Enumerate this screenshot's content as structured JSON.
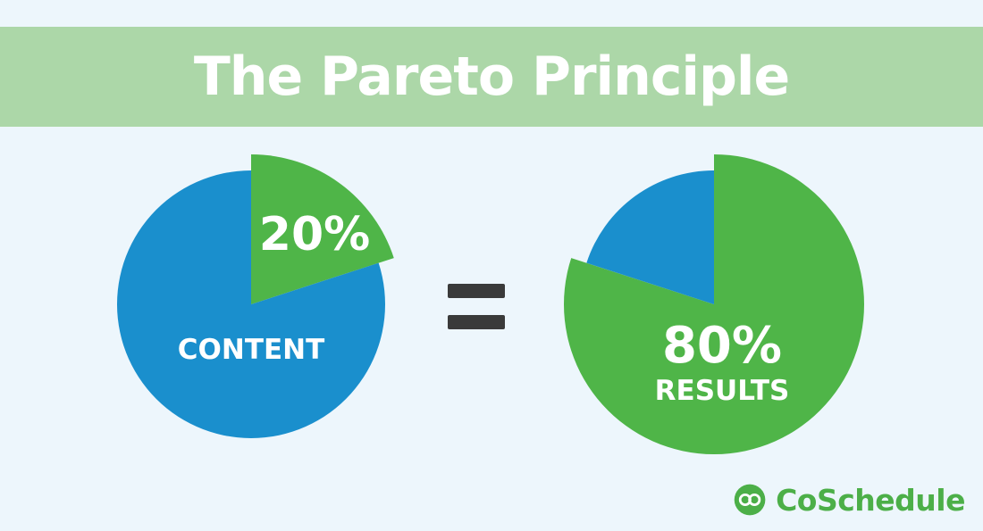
{
  "title": "The Pareto Principle",
  "colors": {
    "background": "#edf6fc",
    "title_band": "#acd7a8",
    "pie_blue": "#1a8fcd",
    "pie_green": "#4fb548",
    "equals": "#3a3a3a",
    "brand": "#4caf48"
  },
  "equals_sign": "=",
  "brand": {
    "name": "CoSchedule",
    "icon": "coschedule-logo-icon"
  },
  "chart_data": [
    {
      "type": "pie",
      "slices": [
        {
          "label": "20%",
          "value": 20,
          "color": "#4fb548",
          "exploded": true
        },
        {
          "label": "CONTENT",
          "value": 80,
          "color": "#1a8fcd",
          "exploded": false
        }
      ]
    },
    {
      "type": "pie",
      "slices": [
        {
          "label": "80%",
          "sublabel": "RESULTS",
          "value": 80,
          "color": "#4fb548",
          "exploded": true
        },
        {
          "label": "",
          "value": 20,
          "color": "#1a8fcd",
          "exploded": false
        }
      ]
    }
  ]
}
